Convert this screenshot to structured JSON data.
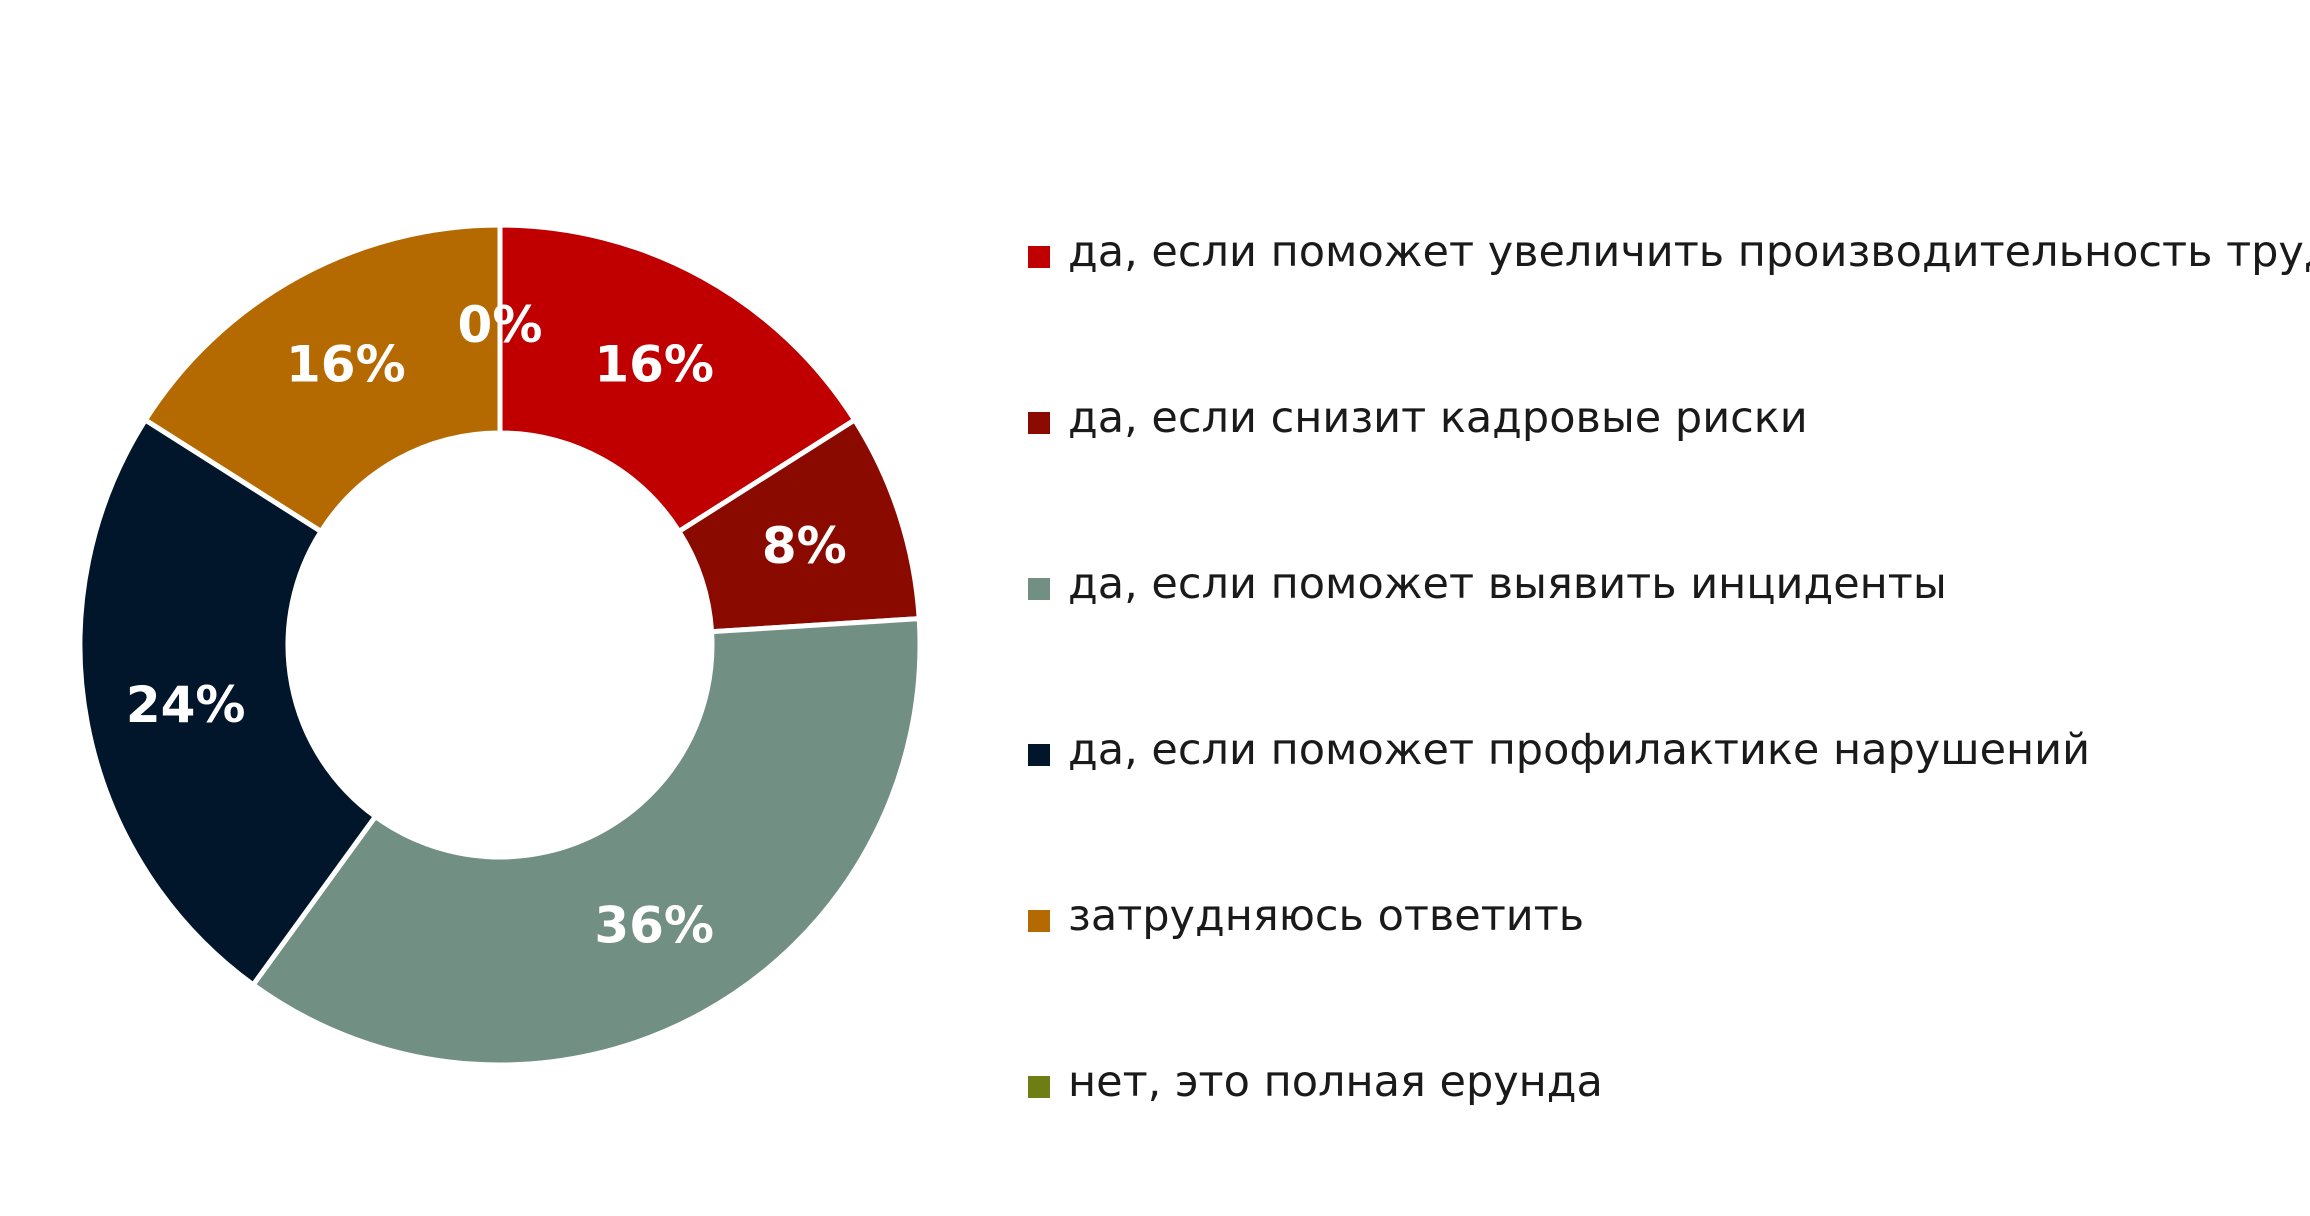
{
  "chart_data": {
    "type": "pie",
    "donut": true,
    "title": "",
    "categories": [
      "да, если поможет увеличить производительность труда",
      "да, если снизит кадровые риски",
      "да, если поможет выявить инциденты",
      "да, если поможет профилактике нарушений",
      "затрудняюсь ответить",
      "нет, это полная ерунда"
    ],
    "values": [
      16,
      8,
      36,
      24,
      16,
      0
    ],
    "data_labels": [
      "16%",
      "8%",
      "36%",
      "24%",
      "16%",
      "0%"
    ],
    "colors": [
      "#C00000",
      "#8B0A00",
      "#718F83",
      "#02162B",
      "#B46A00",
      "#6E7D14"
    ],
    "start_angle_deg": 0,
    "direction": "clockwise",
    "legend_position": "right"
  }
}
